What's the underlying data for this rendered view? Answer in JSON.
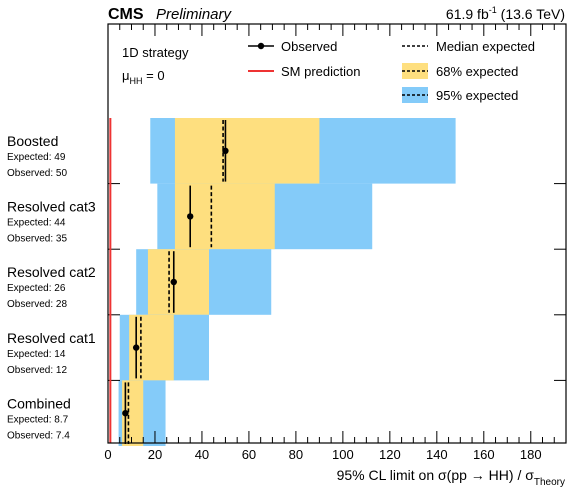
{
  "header": {
    "experiment": "CMS",
    "status": "Preliminary",
    "lumi": "61.9 fb",
    "lumi_exp": "-1",
    "energy": " (13.6 TeV)"
  },
  "annotation": {
    "strategy": "1D strategy",
    "mu_symbol": "μ",
    "mu_sub": "HH",
    "mu_value": " = 0"
  },
  "legend": {
    "observed": "Observed",
    "sm": "SM prediction",
    "median": "Median expected",
    "band68": "68% expected",
    "band95": "95% expected"
  },
  "colors": {
    "band68": "#fedf7f",
    "band95": "#84cbf9",
    "sm": "#ee3333",
    "line": "#000000"
  },
  "chart_data": {
    "type": "limit",
    "xlabel": {
      "prefix": "95% CL limit on σ(pp → HH) / σ",
      "sub": "Theory"
    },
    "xlim": [
      0,
      195
    ],
    "xticks": [
      0,
      20,
      40,
      60,
      80,
      100,
      120,
      140,
      160,
      180
    ],
    "sm_prediction": 1,
    "categories": [
      {
        "name": "Boosted",
        "expected_text": "Expected: 49",
        "observed_text": "Observed: 50",
        "band95": [
          18,
          148
        ],
        "band68": [
          28.5,
          90
        ],
        "expected": 49,
        "observed": 50
      },
      {
        "name": "Resolved cat3",
        "expected_text": "Expected: 44",
        "observed_text": "Observed: 35",
        "band95": [
          21,
          112.5
        ],
        "band68": [
          28.5,
          71
        ],
        "expected": 44,
        "observed": 35
      },
      {
        "name": "Resolved cat2",
        "expected_text": "Expected: 26",
        "observed_text": "Observed: 28",
        "band95": [
          12,
          69.5
        ],
        "band68": [
          17,
          43
        ],
        "expected": 26,
        "observed": 28
      },
      {
        "name": "Resolved cat1",
        "expected_text": "Expected: 14",
        "observed_text": "Observed: 12",
        "band95": [
          5,
          43
        ],
        "band68": [
          9,
          28
        ],
        "expected": 14,
        "observed": 12
      },
      {
        "name": "Combined",
        "expected_text": "Expected: 8.7",
        "observed_text": "Observed: 7.4",
        "band95": [
          4.5,
          24.5
        ],
        "band68": [
          6,
          15
        ],
        "expected": 8.7,
        "observed": 7.4
      }
    ]
  }
}
